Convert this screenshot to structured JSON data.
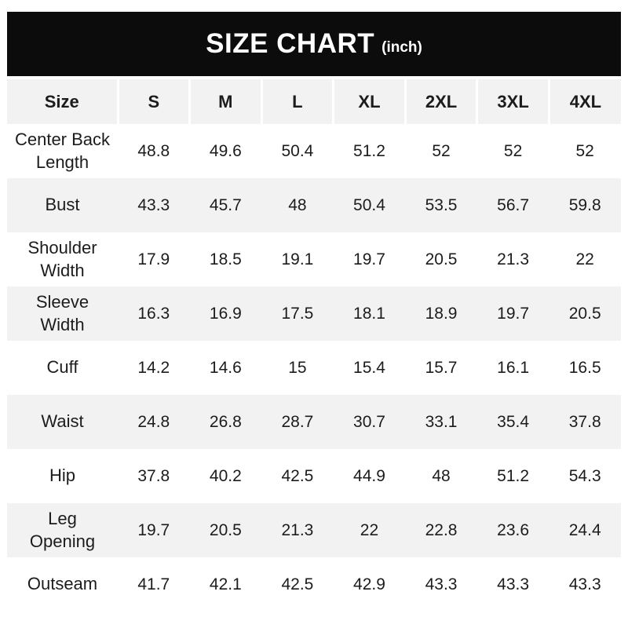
{
  "banner": {
    "title": "SIZE CHART",
    "unit": "(inch)",
    "bg_color": "#0c0c0c",
    "text_color": "#ffffff"
  },
  "chart_data": {
    "type": "table",
    "title": "SIZE CHART (inch)",
    "columns": [
      "Size",
      "S",
      "M",
      "L",
      "XL",
      "2XL",
      "3XL",
      "4XL"
    ],
    "rows": [
      {
        "label": "Center Back\nLength",
        "values": [
          "48.8",
          "49.6",
          "50.4",
          "51.2",
          "52",
          "52",
          "52"
        ]
      },
      {
        "label": "Bust",
        "values": [
          "43.3",
          "45.7",
          "48",
          "50.4",
          "53.5",
          "56.7",
          "59.8"
        ]
      },
      {
        "label": "Shoulder\nWidth",
        "values": [
          "17.9",
          "18.5",
          "19.1",
          "19.7",
          "20.5",
          "21.3",
          "22"
        ]
      },
      {
        "label": "Sleeve\nWidth",
        "values": [
          "16.3",
          "16.9",
          "17.5",
          "18.1",
          "18.9",
          "19.7",
          "20.5"
        ]
      },
      {
        "label": "Cuff",
        "values": [
          "14.2",
          "14.6",
          "15",
          "15.4",
          "15.7",
          "16.1",
          "16.5"
        ]
      },
      {
        "label": "Waist",
        "values": [
          "24.8",
          "26.8",
          "28.7",
          "30.7",
          "33.1",
          "35.4",
          "37.8"
        ]
      },
      {
        "label": "Hip",
        "values": [
          "37.8",
          "40.2",
          "42.5",
          "44.9",
          "48",
          "51.2",
          "54.3"
        ]
      },
      {
        "label": "Leg\nOpening",
        "values": [
          "19.7",
          "20.5",
          "21.3",
          "22",
          "22.8",
          "23.6",
          "24.4"
        ]
      },
      {
        "label": "Outseam",
        "values": [
          "41.7",
          "42.1",
          "42.5",
          "42.9",
          "43.3",
          "43.3",
          "43.3"
        ]
      }
    ],
    "stripe_row_indexes": [
      1,
      3,
      5,
      7
    ],
    "layout_hints": {
      "header_bg": "#f2f2f2",
      "stripe_bg": "#f2f2f2",
      "row_bg": "#ffffff",
      "text_color": "#1c1c1c",
      "header_separator_color": "#ffffff"
    }
  }
}
